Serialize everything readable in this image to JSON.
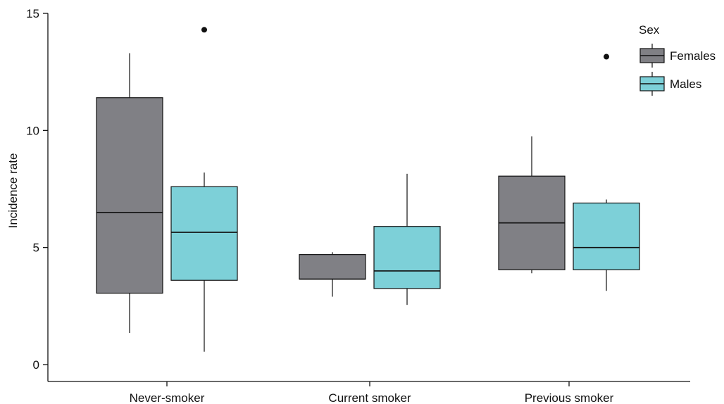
{
  "chart_data": {
    "type": "box",
    "ylabel": "Incidence rate",
    "xlabel": "",
    "ylim": [
      0,
      15
    ],
    "yticks": [
      0,
      5,
      10,
      15
    ],
    "categories": [
      "Never-smoker",
      "Current smoker",
      "Previous smoker"
    ],
    "legend": {
      "title": "Sex",
      "position": "top-right"
    },
    "grid": false,
    "series": [
      {
        "name": "Females",
        "color": "#808085",
        "boxes": [
          {
            "category": "Never-smoker",
            "whisker_low": 1.35,
            "q1": 3.05,
            "median": 6.5,
            "q3": 11.4,
            "whisker_high": 13.3,
            "outliers": []
          },
          {
            "category": "Current smoker",
            "whisker_low": 2.9,
            "q1": 3.65,
            "median": 3.65,
            "q3": 4.7,
            "whisker_high": 4.8,
            "outliers": []
          },
          {
            "category": "Previous smoker",
            "whisker_low": 3.9,
            "q1": 4.05,
            "median": 6.05,
            "q3": 8.05,
            "whisker_high": 9.75,
            "outliers": []
          }
        ]
      },
      {
        "name": "Males",
        "color": "#7dd0d8",
        "boxes": [
          {
            "category": "Never-smoker",
            "whisker_low": 0.55,
            "q1": 3.6,
            "median": 5.65,
            "q3": 7.6,
            "whisker_high": 8.2,
            "outliers": [
              14.3
            ]
          },
          {
            "category": "Current smoker",
            "whisker_low": 2.55,
            "q1": 3.25,
            "median": 4.0,
            "q3": 5.9,
            "whisker_high": 8.15,
            "outliers": []
          },
          {
            "category": "Previous smoker",
            "whisker_low": 3.15,
            "q1": 4.05,
            "median": 5.0,
            "q3": 6.9,
            "whisker_high": 7.05,
            "outliers": [
              13.15
            ]
          }
        ]
      }
    ]
  }
}
